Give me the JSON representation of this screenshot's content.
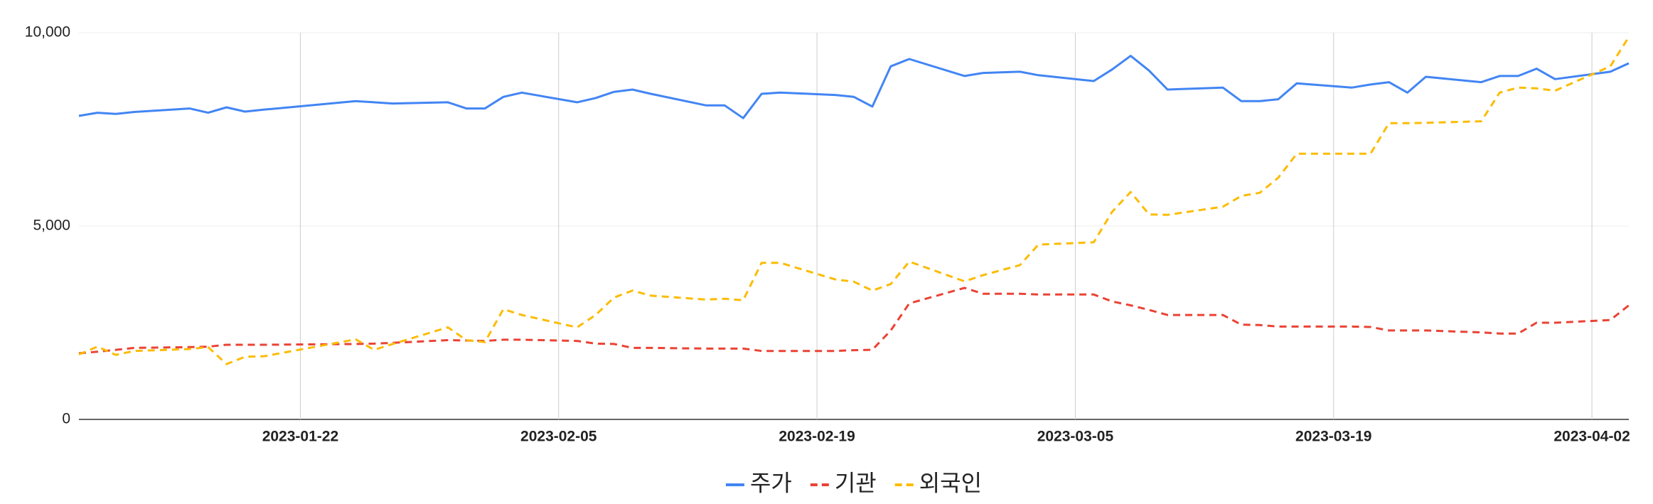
{
  "chart_data": {
    "type": "line",
    "x": [
      "2023-01-10",
      "2023-01-11",
      "2023-01-12",
      "2023-01-13",
      "2023-01-16",
      "2023-01-17",
      "2023-01-18",
      "2023-01-19",
      "2023-01-20",
      "2023-01-25",
      "2023-01-26",
      "2023-01-27",
      "2023-01-30",
      "2023-01-31",
      "2023-02-01",
      "2023-02-02",
      "2023-02-03",
      "2023-02-06",
      "2023-02-07",
      "2023-02-08",
      "2023-02-09",
      "2023-02-10",
      "2023-02-13",
      "2023-02-14",
      "2023-02-15",
      "2023-02-16",
      "2023-02-17",
      "2023-02-20",
      "2023-02-21",
      "2023-02-22",
      "2023-02-23",
      "2023-02-24",
      "2023-02-27",
      "2023-02-28",
      "2023-03-02",
      "2023-03-03",
      "2023-03-06",
      "2023-03-07",
      "2023-03-08",
      "2023-03-09",
      "2023-03-10",
      "2023-03-13",
      "2023-03-14",
      "2023-03-15",
      "2023-03-16",
      "2023-03-17",
      "2023-03-20",
      "2023-03-21",
      "2023-03-22",
      "2023-03-23",
      "2023-03-24",
      "2023-03-27",
      "2023-03-28",
      "2023-03-29",
      "2023-03-30",
      "2023-03-31",
      "2023-04-03",
      "2023-04-04"
    ],
    "series": [
      {
        "name": "주가",
        "color": "#4285f4",
        "dashed": false,
        "values": [
          7850,
          7930,
          7900,
          7950,
          8040,
          7930,
          8070,
          7960,
          8010,
          8230,
          8200,
          8170,
          8200,
          8040,
          8040,
          8340,
          8450,
          8200,
          8310,
          8470,
          8530,
          8420,
          8120,
          8120,
          7790,
          8420,
          8450,
          8390,
          8340,
          8090,
          9130,
          9320,
          8880,
          8960,
          8990,
          8900,
          8750,
          9050,
          9400,
          9020,
          8530,
          8580,
          8230,
          8230,
          8280,
          8690,
          8580,
          8660,
          8720,
          8450,
          8860,
          8720,
          8880,
          8880,
          9070,
          8800,
          8990,
          9210
        ]
      },
      {
        "name": "기관",
        "color": "#ea4335",
        "dashed": true,
        "values": [
          1710,
          1750,
          1800,
          1850,
          1870,
          1880,
          1930,
          1930,
          1930,
          1950,
          1960,
          1980,
          2050,
          2040,
          2030,
          2060,
          2060,
          2030,
          1960,
          1950,
          1850,
          1850,
          1830,
          1830,
          1830,
          1770,
          1770,
          1770,
          1790,
          1800,
          2300,
          3000,
          3400,
          3250,
          3250,
          3230,
          3230,
          3050,
          2950,
          2830,
          2700,
          2700,
          2450,
          2440,
          2400,
          2400,
          2400,
          2390,
          2300,
          2300,
          2300,
          2250,
          2220,
          2220,
          2500,
          2500,
          2570,
          2950
        ]
      },
      {
        "name": "외국인",
        "color": "#fbbc04",
        "dashed": true,
        "values": [
          1680,
          1880,
          1670,
          1770,
          1820,
          1870,
          1430,
          1620,
          1630,
          2070,
          1800,
          1950,
          2380,
          2050,
          2000,
          2850,
          2700,
          2380,
          2700,
          3150,
          3330,
          3200,
          3100,
          3120,
          3080,
          4050,
          4050,
          3620,
          3560,
          3330,
          3500,
          4080,
          3570,
          3730,
          3990,
          4520,
          4580,
          5370,
          5880,
          5300,
          5290,
          5500,
          5780,
          5860,
          6250,
          6870,
          6870,
          6870,
          7660,
          7660,
          7670,
          7710,
          8450,
          8580,
          8560,
          8500,
          9130,
          9890
        ]
      }
    ],
    "xlim": [
      "2023-01-10",
      "2023-04-04"
    ],
    "xticks": [
      "2023-01-22",
      "2023-02-05",
      "2023-02-19",
      "2023-03-05",
      "2023-03-19",
      "2023-04-02"
    ],
    "ylim": [
      0,
      10000
    ],
    "yticks": [
      0,
      {
        "value": 5000,
        "label": "5,000"
      },
      {
        "value": 10000,
        "label": "10,000"
      }
    ],
    "grid": true,
    "legend": "bottom"
  }
}
